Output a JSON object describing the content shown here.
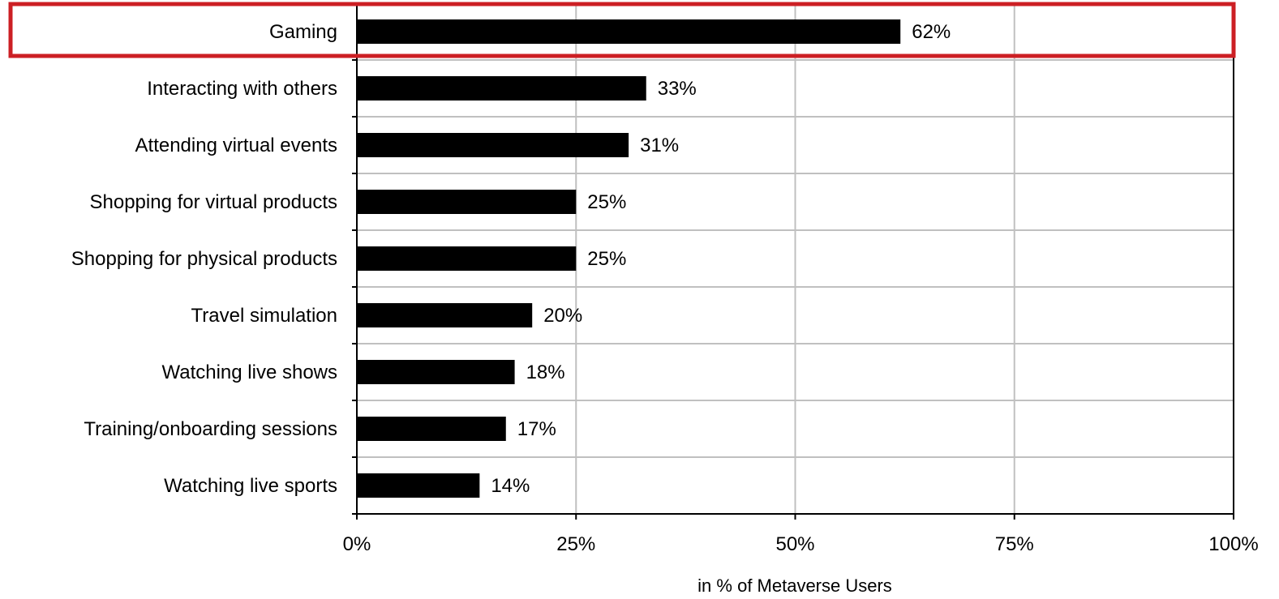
{
  "chart_data": {
    "type": "bar",
    "orientation": "horizontal",
    "categories": [
      "Gaming",
      "Interacting with others",
      "Attending virtual events",
      "Shopping for virtual products",
      "Shopping for physical products",
      "Travel simulation",
      "Watching live shows",
      "Training/onboarding sessions",
      "Watching live sports"
    ],
    "values": [
      62,
      33,
      31,
      25,
      25,
      20,
      18,
      17,
      14
    ],
    "value_labels": [
      "62%",
      "33%",
      "31%",
      "25%",
      "25%",
      "20%",
      "18%",
      "17%",
      "14%"
    ],
    "xlim": [
      0,
      100
    ],
    "xticks": [
      0,
      25,
      50,
      75,
      100
    ],
    "xtick_labels": [
      "0%",
      "25%",
      "50%",
      "75%",
      "100%"
    ],
    "xlabel": "in % of Metaverse Users",
    "ylabel": "",
    "title": "",
    "grid": true,
    "highlighted_category": "Gaming",
    "colors": {
      "bar": "#000000",
      "grid": "#c0c0c0",
      "axis": "#000000",
      "highlight": "#cc1f24"
    }
  }
}
